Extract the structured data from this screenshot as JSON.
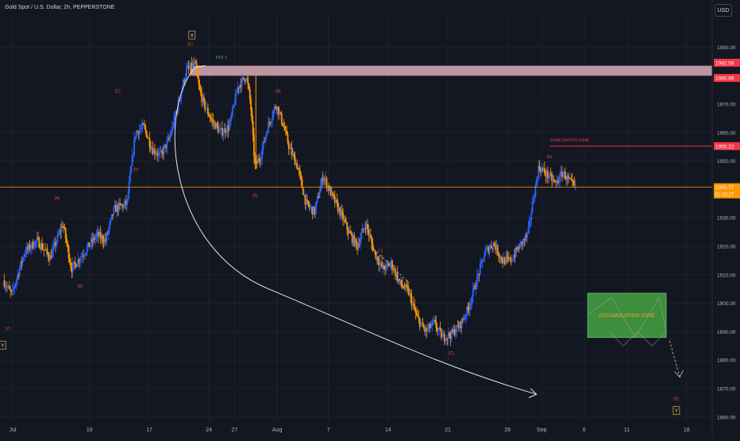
{
  "header": {
    "symbol_title": "Gold Spot / U.S. Dollar, 2h, PEPPERSTONE",
    "currency": "USD"
  },
  "colors": {
    "background": "#131722",
    "grid": "#1e222d",
    "up": "#2962ff",
    "down": "#ff9800",
    "accent_red": "#f23645",
    "poi": "#d8aeb8",
    "zone": "#3d8f3d",
    "zone_text": "#f5a623",
    "wave_label": "#e74c3c",
    "curve": "#e6e6e6",
    "text": "#b2b5be"
  },
  "chart_data": {
    "type": "candlestick",
    "title": "Gold Spot / U.S. Dollar, 2h, PEPPERSTONE",
    "y_axis": {
      "ticks": [
        1990.0,
        1970.0,
        1960.0,
        1950.0,
        1930.0,
        1920.0,
        1910.0,
        1900.0,
        1890.0,
        1880.0,
        1870.0,
        1860.0
      ],
      "ylim": [
        1858,
        2001
      ]
    },
    "x_axis": {
      "ticks": [
        {
          "label": "Jul",
          "d": 0
        },
        {
          "label": "10",
          "d": 9
        },
        {
          "label": "17",
          "d": 16
        },
        {
          "label": "24",
          "d": 23
        },
        {
          "label": "27",
          "d": 26
        },
        {
          "label": "Aug",
          "d": 31
        },
        {
          "label": "7",
          "d": 37
        },
        {
          "label": "14",
          "d": 44
        },
        {
          "label": "21",
          "d": 51
        },
        {
          "label": "28",
          "d": 58
        },
        {
          "label": "Sep",
          "d": 62
        },
        {
          "label": "6",
          "d": 67
        },
        {
          "label": "11",
          "d": 72
        },
        {
          "label": "18",
          "d": 79
        }
      ],
      "xlim": [
        -1.5,
        82
      ]
    },
    "price_path": [
      [
        -1,
        1908
      ],
      [
        0,
        1903
      ],
      [
        1.5,
        1918
      ],
      [
        3,
        1922
      ],
      [
        4.5,
        1916
      ],
      [
        6,
        1928
      ],
      [
        7,
        1912
      ],
      [
        8.5,
        1918
      ],
      [
        10,
        1924
      ],
      [
        11,
        1922
      ],
      [
        12,
        1933
      ],
      [
        13.5,
        1935
      ],
      [
        14.5,
        1960
      ],
      [
        15.5,
        1962
      ],
      [
        16.5,
        1954
      ],
      [
        17.5,
        1952
      ],
      [
        18.5,
        1958
      ],
      [
        19.5,
        1970
      ],
      [
        20.5,
        1982
      ],
      [
        21.5,
        1984
      ],
      [
        22,
        1975
      ],
      [
        22.5,
        1970
      ],
      [
        23.5,
        1964
      ],
      [
        24.5,
        1960
      ],
      [
        25.5,
        1962
      ],
      [
        26.5,
        1976
      ],
      [
        27.5,
        1980
      ],
      [
        28,
        1970
      ],
      [
        28.5,
        1948
      ],
      [
        29.2,
        1952
      ],
      [
        30,
        1962
      ],
      [
        31,
        1970
      ],
      [
        31.8,
        1963
      ],
      [
        32.5,
        1955
      ],
      [
        33.5,
        1948
      ],
      [
        34.5,
        1935
      ],
      [
        35.5,
        1932
      ],
      [
        36.5,
        1945
      ],
      [
        37.5,
        1938
      ],
      [
        38.5,
        1932
      ],
      [
        39.5,
        1925
      ],
      [
        40.5,
        1920
      ],
      [
        41.5,
        1928
      ],
      [
        42.5,
        1918
      ],
      [
        43.5,
        1912
      ],
      [
        44.5,
        1914
      ],
      [
        45.5,
        1907
      ],
      [
        46.5,
        1904
      ],
      [
        47.5,
        1895
      ],
      [
        48.5,
        1890
      ],
      [
        49.5,
        1893
      ],
      [
        50.5,
        1888
      ],
      [
        51.5,
        1889
      ],
      [
        52.5,
        1892
      ],
      [
        53.5,
        1898
      ],
      [
        54.5,
        1908
      ],
      [
        55.5,
        1918
      ],
      [
        56.5,
        1921
      ],
      [
        57.5,
        1915
      ],
      [
        58.5,
        1915
      ],
      [
        59.5,
        1920
      ],
      [
        60.5,
        1924
      ],
      [
        61,
        1934
      ],
      [
        61.8,
        1948
      ],
      [
        62.8,
        1945
      ],
      [
        63.8,
        1942
      ],
      [
        64.6,
        1946
      ],
      [
        65.3,
        1943
      ],
      [
        66,
        1940.77
      ]
    ],
    "volatility": 3.2,
    "poi_zone": {
      "label": "POI 1",
      "top": 1982.58,
      "bottom": 1980.86,
      "x_start": 20.8
    },
    "invalidation": {
      "label": "INVALIDATION ZONE",
      "value": 1955.22,
      "x_start": 63
    },
    "current_price": {
      "value": 1940.77,
      "countdown": "01:33:27"
    },
    "accumulation_zone": {
      "label": "ACCUMULATION ZONE",
      "top": 1903.5,
      "bottom": 1888,
      "x_start": 67.4,
      "x_end": 76.6
    },
    "vertical_marker": {
      "d": 28.5,
      "from": 1980.86,
      "to": 1947
    },
    "wave_labels": [
      {
        "text": "(Y)",
        "d": -0.6,
        "y": 1890.5
      },
      {
        "text": "(A)",
        "d": 5.2,
        "y": 1936.5
      },
      {
        "text": "(B)",
        "d": 7.9,
        "y": 1905.5
      },
      {
        "text": "(C)",
        "d": 12.3,
        "y": 1974
      },
      {
        "text": "(D)",
        "d": 14.4,
        "y": 1946.5
      },
      {
        "text": "(E)",
        "d": 20.8,
        "y": 1990.5
      },
      {
        "text": "(A)",
        "d": 28.4,
        "y": 1937.5
      },
      {
        "text": "(B)",
        "d": 31.1,
        "y": 1974
      },
      {
        "text": "LQ",
        "d": 43.1,
        "y": 1918
      },
      {
        "text": "(C)",
        "d": 51.4,
        "y": 1882
      },
      {
        "text": "(D)",
        "d": 62.9,
        "y": 1951
      },
      {
        "text": "(E)",
        "d": 77.8,
        "y": 1866
      }
    ],
    "boxed_labels": [
      {
        "text": "X",
        "d": 21,
        "y": 1994
      },
      {
        "text": "Y",
        "d": -1.2,
        "y": 1885
      },
      {
        "text": "Y",
        "d": 77.8,
        "y": 1862
      }
    ]
  }
}
